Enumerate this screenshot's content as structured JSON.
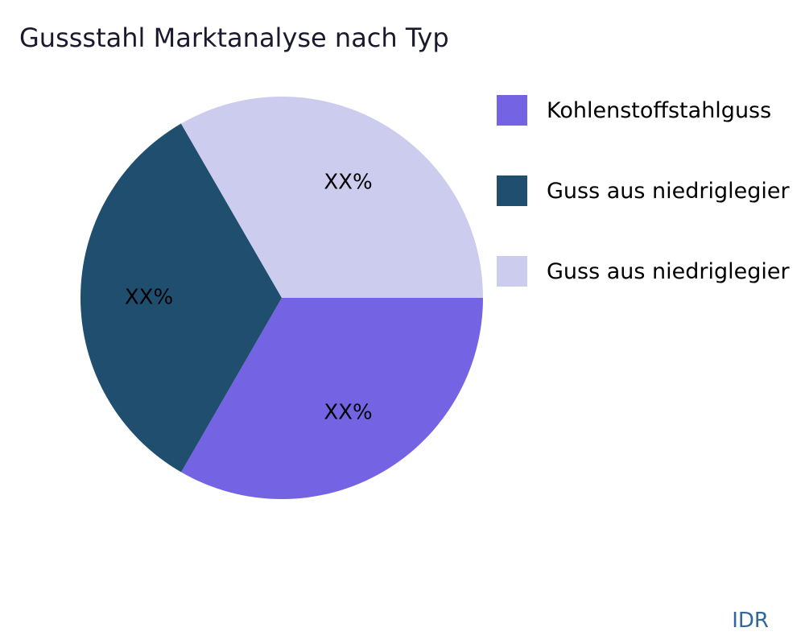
{
  "chart_data": {
    "type": "pie",
    "title": "Gussstahl Marktanalyse nach Typ",
    "slices": [
      {
        "label": "Kohlenstoffstahlguss",
        "display": "XX%",
        "value": 33.33,
        "color": "#7464E4"
      },
      {
        "label": "Guss aus niedriglegier",
        "display": "XX%",
        "value": 33.33,
        "color": "#1F4E6E"
      },
      {
        "label": "Guss aus niedriglegier",
        "display": "XX%",
        "value": 33.34,
        "color": "#CCCCEE"
      }
    ],
    "start_angle_deg": 0,
    "direction": "clockwise",
    "legend_position": "right",
    "labels": "placeholder percentages shown as XX%"
  },
  "footer": {
    "watermark": "IDR",
    "watermark_color": "#33669C"
  }
}
